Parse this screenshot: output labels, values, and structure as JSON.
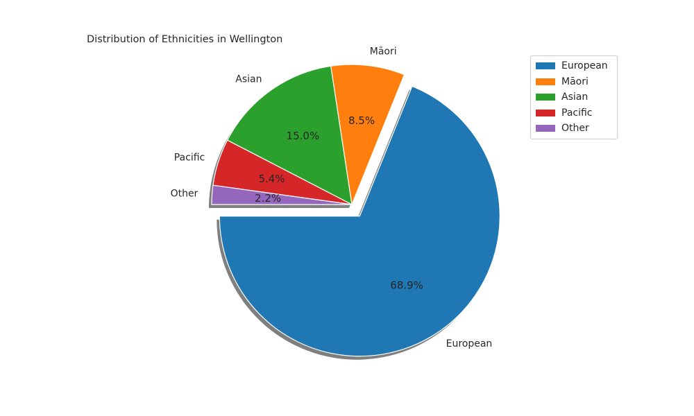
{
  "chart_data": {
    "type": "pie",
    "title": "Distribution of Ethnicities in Wellington",
    "slices": [
      {
        "label": "European",
        "value": 68.9,
        "pct_label": "68.9%",
        "color": "#1f77b4",
        "exploded": true
      },
      {
        "label": "Māori",
        "value": 8.5,
        "pct_label": "8.5%",
        "color": "#ff7f0e",
        "exploded": false
      },
      {
        "label": "Asian",
        "value": 15.0,
        "pct_label": "15.0%",
        "color": "#2ca02c",
        "exploded": false
      },
      {
        "label": "Pacific",
        "value": 5.4,
        "pct_label": "5.4%",
        "color": "#d62728",
        "exploded": false
      },
      {
        "label": "Other",
        "value": 2.2,
        "pct_label": "2.2%",
        "color": "#9467bd",
        "exploded": false
      }
    ],
    "shadow": true,
    "legend_position": "top-right"
  }
}
